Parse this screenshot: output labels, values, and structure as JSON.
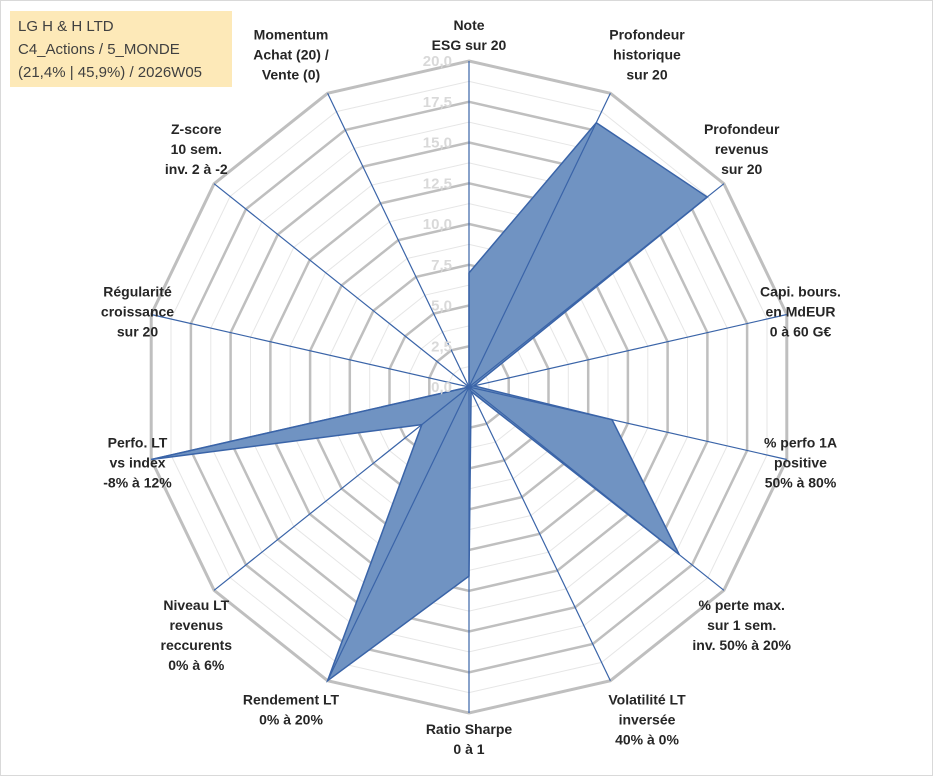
{
  "header": {
    "line1": "LG H & H LTD",
    "line2": "C4_Actions / 5_MONDE",
    "line3": "(21,4% | 45,9%) / 2026W05"
  },
  "colors": {
    "fill": "#7093c2",
    "line": "#3a64a8",
    "grid": "#bfbfbf",
    "ring": "#e6e6e6",
    "box": "#fde9b8"
  },
  "chart_data": {
    "type": "radar",
    "r_max": 20,
    "ticks": [
      "0,0",
      "2,5",
      "5,0",
      "7,5",
      "10,0",
      "12,5",
      "15,0",
      "17,5",
      "20,0"
    ],
    "axes": [
      {
        "lines": [
          "Note",
          "ESG sur 20"
        ],
        "value": 7.0
      },
      {
        "lines": [
          "Profondeur",
          "historique",
          "sur 20"
        ],
        "value": 18.0
      },
      {
        "lines": [
          "Profondeur",
          "revenus",
          "sur 20"
        ],
        "value": 18.7
      },
      {
        "lines": [
          "Capi. bours.",
          "en MdEUR",
          "0 à 60 G€"
        ],
        "value": 0.3
      },
      {
        "lines": [
          "% perfo 1A",
          "positive",
          "50% à 80%"
        ],
        "value": 9.0
      },
      {
        "lines": [
          "% perte max.",
          "sur 1 sem.",
          "inv. 50% à 20%"
        ],
        "value": 16.5
      },
      {
        "lines": [
          "Volatilité LT",
          "inversée",
          "40% à 0%"
        ],
        "value": 0.3
      },
      {
        "lines": [
          "Ratio Sharpe",
          "0 à 1"
        ],
        "value": 11.6
      },
      {
        "lines": [
          "Rendement LT",
          "0% à 20%"
        ],
        "value": 20.0
      },
      {
        "lines": [
          "Niveau LT",
          "revenus",
          "reccurents",
          "0% à 6%"
        ],
        "value": 3.7
      },
      {
        "lines": [
          "Perfo. LT",
          "vs index",
          "-8% à 12%"
        ],
        "value": 20.0
      },
      {
        "lines": [
          "Régularité",
          "croissance",
          "sur 20"
        ],
        "value": 0.0
      },
      {
        "lines": [
          "Z-score",
          "10 sem.",
          "inv. 2 à -2"
        ],
        "value": 0.0
      },
      {
        "lines": [
          "Momentum",
          "Achat (20) /",
          "Vente (0)"
        ],
        "value": 0.0
      }
    ]
  }
}
